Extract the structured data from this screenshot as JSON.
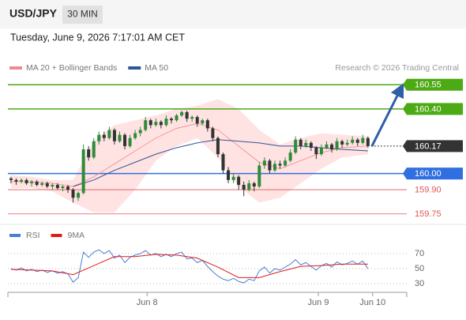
{
  "chart_data": {
    "type": "candlestick",
    "symbol": "USD/JPY",
    "interval": "30 MIN",
    "timestamp": "Tuesday, June 9, 2026 7:17:01 AM CET",
    "credit": "Research © 2026 Trading Central",
    "up_color": "#2e8b3a",
    "down_color": "#333333",
    "xlim": [
      -0.6,
      76.5
    ],
    "ylim": [
      159.69,
      160.61
    ],
    "xticks": [
      {
        "value": 26.3,
        "label": "Jun 8"
      },
      {
        "value": 59.4,
        "label": "Jun 9"
      },
      {
        "value": 69.9,
        "label": "Jun 10"
      }
    ],
    "candles": [
      [
        159.97,
        159.98,
        159.94,
        159.96
      ],
      [
        159.96,
        159.97,
        159.93,
        159.95
      ],
      [
        159.95,
        159.97,
        159.94,
        159.96
      ],
      [
        159.96,
        159.97,
        159.93,
        159.94
      ],
      [
        159.94,
        159.96,
        159.92,
        159.95
      ],
      [
        159.95,
        159.96,
        159.92,
        159.93
      ],
      [
        159.93,
        159.95,
        159.92,
        159.94
      ],
      [
        159.94,
        159.95,
        159.91,
        159.92
      ],
      [
        159.92,
        159.94,
        159.9,
        159.93
      ],
      [
        159.93,
        159.94,
        159.9,
        159.91
      ],
      [
        159.91,
        159.93,
        159.89,
        159.92
      ],
      [
        159.92,
        159.93,
        159.88,
        159.9
      ],
      [
        159.9,
        159.91,
        159.82,
        159.85
      ],
      [
        159.85,
        159.89,
        159.83,
        159.88
      ],
      [
        159.88,
        160.18,
        159.87,
        160.15
      ],
      [
        160.15,
        160.17,
        160.08,
        160.1
      ],
      [
        160.1,
        160.22,
        160.09,
        160.2
      ],
      [
        160.2,
        160.26,
        160.18,
        160.24
      ],
      [
        160.24,
        160.26,
        160.2,
        160.22
      ],
      [
        160.22,
        160.29,
        160.21,
        160.27
      ],
      [
        160.27,
        160.28,
        160.18,
        160.2
      ],
      [
        160.2,
        160.26,
        160.19,
        160.24
      ],
      [
        160.24,
        160.25,
        160.15,
        160.17
      ],
      [
        160.17,
        160.24,
        160.16,
        160.22
      ],
      [
        160.22,
        160.27,
        160.21,
        160.25
      ],
      [
        160.25,
        160.29,
        160.23,
        160.27
      ],
      [
        160.27,
        160.35,
        160.26,
        160.33
      ],
      [
        160.33,
        160.34,
        160.28,
        160.3
      ],
      [
        160.3,
        160.34,
        160.29,
        160.32
      ],
      [
        160.32,
        160.33,
        160.28,
        160.3
      ],
      [
        160.3,
        160.36,
        160.29,
        160.34
      ],
      [
        160.34,
        160.35,
        160.31,
        160.33
      ],
      [
        160.33,
        160.37,
        160.32,
        160.36
      ],
      [
        160.36,
        160.39,
        160.35,
        160.38
      ],
      [
        160.38,
        160.39,
        160.32,
        160.34
      ],
      [
        160.34,
        160.36,
        160.32,
        160.35
      ],
      [
        160.35,
        160.36,
        160.29,
        160.31
      ],
      [
        160.31,
        160.34,
        160.3,
        160.33
      ],
      [
        160.33,
        160.34,
        160.26,
        160.28
      ],
      [
        160.28,
        160.29,
        160.2,
        160.22
      ],
      [
        160.22,
        160.23,
        160.1,
        160.12
      ],
      [
        160.12,
        160.13,
        160.0,
        160.02
      ],
      [
        160.02,
        160.04,
        159.94,
        159.96
      ],
      [
        159.96,
        160.0,
        159.94,
        159.98
      ],
      [
        159.98,
        159.99,
        159.9,
        159.93
      ],
      [
        159.93,
        159.95,
        159.86,
        159.9
      ],
      [
        159.9,
        159.96,
        159.89,
        159.94
      ],
      [
        159.94,
        159.95,
        159.89,
        159.92
      ],
      [
        159.92,
        160.07,
        159.91,
        160.05
      ],
      [
        160.05,
        160.1,
        160.03,
        160.08
      ],
      [
        160.08,
        160.09,
        160.0,
        160.02
      ],
      [
        160.02,
        160.08,
        160.01,
        160.06
      ],
      [
        160.06,
        160.08,
        160.03,
        160.05
      ],
      [
        160.05,
        160.1,
        160.04,
        160.08
      ],
      [
        160.08,
        160.15,
        160.07,
        160.13
      ],
      [
        160.13,
        160.23,
        160.12,
        160.21
      ],
      [
        160.21,
        160.22,
        160.15,
        160.17
      ],
      [
        160.17,
        160.21,
        160.16,
        160.19
      ],
      [
        160.19,
        160.2,
        160.14,
        160.16
      ],
      [
        160.16,
        160.17,
        160.09,
        160.12
      ],
      [
        160.12,
        160.18,
        160.11,
        160.16
      ],
      [
        160.16,
        160.2,
        160.15,
        160.18
      ],
      [
        160.18,
        160.19,
        160.13,
        160.15
      ],
      [
        160.15,
        160.22,
        160.14,
        160.2
      ],
      [
        160.2,
        160.21,
        160.16,
        160.18
      ],
      [
        160.18,
        160.21,
        160.17,
        160.19
      ],
      [
        160.19,
        160.23,
        160.18,
        160.21
      ],
      [
        160.21,
        160.22,
        160.17,
        160.19
      ],
      [
        160.19,
        160.24,
        160.18,
        160.22
      ],
      [
        160.22,
        160.23,
        160.16,
        160.17
      ]
    ],
    "ma_x": [
      0,
      4,
      8,
      12,
      16,
      20,
      24,
      28,
      32,
      36,
      40,
      44,
      48,
      52,
      56,
      60,
      64,
      69
    ],
    "series": [
      {
        "name": "MA 20 + Bollinger Bands",
        "color": "#f08a8a",
        "band_color": "#ffd6d6",
        "values": [
          159.95,
          159.95,
          159.94,
          159.92,
          159.98,
          160.06,
          160.14,
          160.22,
          160.28,
          160.31,
          160.27,
          160.17,
          160.07,
          160.03,
          160.08,
          160.13,
          160.16,
          160.17
        ],
        "upper": [
          159.99,
          159.98,
          159.96,
          159.96,
          160.2,
          160.3,
          160.33,
          160.36,
          160.4,
          160.42,
          160.46,
          160.4,
          160.27,
          160.18,
          160.22,
          160.25,
          160.24,
          160.23
        ],
        "lower": [
          159.91,
          159.91,
          159.89,
          159.82,
          159.76,
          159.76,
          159.9,
          160.08,
          160.17,
          160.22,
          160.1,
          159.92,
          159.82,
          159.85,
          159.94,
          160.03,
          160.1,
          160.12
        ]
      },
      {
        "name": "MA 50",
        "color": "#2f5597",
        "values": [
          null,
          null,
          null,
          159.92,
          159.96,
          160.02,
          160.07,
          160.12,
          160.16,
          160.19,
          160.21,
          160.2,
          160.19,
          160.17,
          160.17,
          160.16,
          160.15,
          160.14
        ]
      }
    ],
    "levels": [
      {
        "value": 160.55,
        "label": "160.55",
        "color": "#4caa14",
        "line": "solid",
        "label_style": "box"
      },
      {
        "value": 160.4,
        "label": "160.40",
        "color": "#4caa14",
        "line": "solid",
        "label_style": "box"
      },
      {
        "value": 160.17,
        "label": "160.17",
        "color": "#333333",
        "line": "dotted",
        "label_style": "box"
      },
      {
        "value": 160.0,
        "label": "160.00",
        "color": "#2f6fe0",
        "line": "solid",
        "label_style": "box"
      },
      {
        "value": 159.9,
        "label": "159.90",
        "color": "#e05555",
        "line": "solid",
        "label_style": "text"
      },
      {
        "value": 159.75,
        "label": "159.75",
        "color": "#e05555",
        "line": "solid",
        "label_style": "text"
      }
    ],
    "rsi": {
      "ylim": [
        18.4,
        86.8
      ],
      "yticks": [
        70,
        50,
        30
      ],
      "series": [
        {
          "name": "RSI",
          "color": "#4a7fd4",
          "values": [
            50,
            48,
            51,
            47,
            49,
            46,
            48,
            45,
            47,
            44,
            46,
            43,
            32,
            38,
            72,
            65,
            72,
            75,
            70,
            74,
            64,
            68,
            58,
            65,
            68,
            70,
            74,
            68,
            70,
            66,
            69,
            66,
            70,
            72,
            63,
            64,
            58,
            61,
            53,
            46,
            40,
            36,
            34,
            37,
            33,
            31,
            36,
            34,
            47,
            52,
            44,
            50,
            48,
            52,
            56,
            62,
            55,
            58,
            53,
            48,
            54,
            57,
            52,
            59,
            55,
            57,
            60,
            56,
            60,
            50
          ]
        },
        {
          "name": "9MA",
          "color": "#e01b1b",
          "values": [
            49,
            48,
            47,
            42,
            54,
            66,
            66,
            69,
            68,
            64,
            52,
            38,
            38,
            46,
            53,
            54,
            56,
            56
          ]
        }
      ]
    }
  }
}
